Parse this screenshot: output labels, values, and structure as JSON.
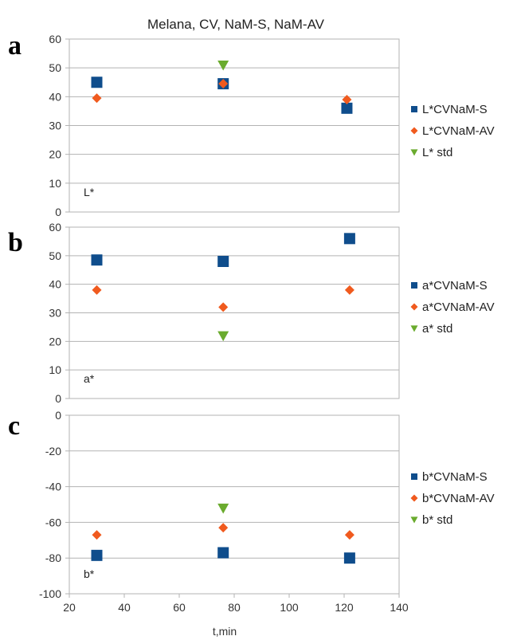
{
  "chart_data": [
    {
      "panel": "a",
      "type": "scatter",
      "title": "Melana, CV, NaM-S, NaM-AV",
      "inner_label": "L*",
      "xlim": [
        20,
        140
      ],
      "ylim": [
        0,
        60
      ],
      "yticks": [
        0,
        10,
        20,
        30,
        40,
        50,
        60
      ],
      "grid": true,
      "legend": "right",
      "series": [
        {
          "name": "L*CVNaM-S",
          "marker": "square",
          "color": "#0f4d8c",
          "points": [
            [
              30,
              45
            ],
            [
              76,
              44.5
            ],
            [
              121,
              36
            ]
          ]
        },
        {
          "name": "L*CVNaM-AV",
          "marker": "diamond",
          "color": "#f05a1e",
          "points": [
            [
              30,
              39.5
            ],
            [
              76,
              44.5
            ],
            [
              121,
              39
            ]
          ]
        },
        {
          "name": "L* std",
          "marker": "triangle-down",
          "color": "#6aab2e",
          "points": [
            [
              76,
              51
            ]
          ]
        }
      ]
    },
    {
      "panel": "b",
      "type": "scatter",
      "inner_label": "a*",
      "xlim": [
        20,
        140
      ],
      "ylim": [
        0,
        60
      ],
      "yticks": [
        0,
        10,
        20,
        30,
        40,
        50,
        60
      ],
      "grid": true,
      "legend": "right",
      "series": [
        {
          "name": "a*CVNaM-S",
          "marker": "square",
          "color": "#0f4d8c",
          "points": [
            [
              30,
              48.5
            ],
            [
              76,
              48
            ],
            [
              122,
              56
            ]
          ]
        },
        {
          "name": "a*CVNaM-AV",
          "marker": "diamond",
          "color": "#f05a1e",
          "points": [
            [
              30,
              38
            ],
            [
              76,
              32
            ],
            [
              122,
              38
            ]
          ]
        },
        {
          "name": "a* std",
          "marker": "triangle-down",
          "color": "#6aab2e",
          "points": [
            [
              76,
              22
            ]
          ]
        }
      ]
    },
    {
      "panel": "c",
      "type": "scatter",
      "inner_label": "b*",
      "xlabel": "t,min",
      "xlim": [
        20,
        140
      ],
      "xticks": [
        20,
        40,
        60,
        80,
        100,
        120,
        140
      ],
      "ylim": [
        -100,
        0
      ],
      "yticks": [
        -100,
        -80,
        -60,
        -40,
        -20,
        0
      ],
      "grid": true,
      "legend": "right",
      "series": [
        {
          "name": "b*CVNaM-S",
          "marker": "square",
          "color": "#0f4d8c",
          "points": [
            [
              30,
              -78.5
            ],
            [
              76,
              -77
            ],
            [
              122,
              -80
            ]
          ]
        },
        {
          "name": "b*CVNaM-AV",
          "marker": "diamond",
          "color": "#f05a1e",
          "points": [
            [
              30,
              -67
            ],
            [
              76,
              -63
            ],
            [
              122,
              -67
            ]
          ]
        },
        {
          "name": "b* std",
          "marker": "triangle-down",
          "color": "#6aab2e",
          "points": [
            [
              76,
              -52
            ]
          ]
        }
      ]
    }
  ]
}
